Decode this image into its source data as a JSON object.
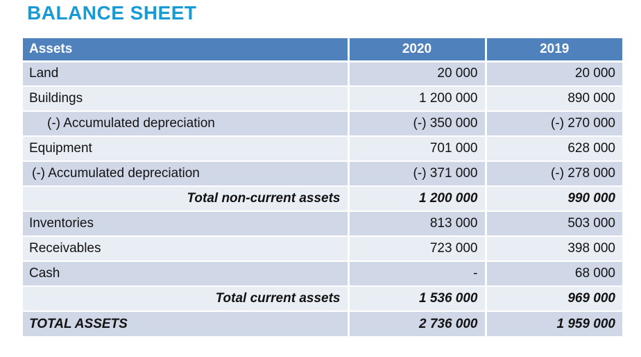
{
  "title": "BALANCE SHEET",
  "colors": {
    "title": "#189BD5",
    "header_bg": "#4F81BD",
    "header_text": "#FFFFFF",
    "row_band_dark": "#D0D8E8",
    "row_band_light": "#E9EDF4",
    "body_text": "#121212"
  },
  "table": {
    "columns": [
      "Assets",
      "2020",
      "2019"
    ],
    "rows": [
      {
        "label": "Land",
        "v2020": "20 000",
        "v2019": "20 000",
        "style": "normal",
        "indent": 0
      },
      {
        "label": "Buildings",
        "v2020": "1 200 000",
        "v2019": "890 000",
        "style": "normal",
        "indent": 0
      },
      {
        "label": "(-) Accumulated depreciation",
        "v2020": "(-) 350 000",
        "v2019": "(-) 270 000",
        "style": "normal",
        "indent": 26
      },
      {
        "label": "Equipment",
        "v2020": "701 000",
        "v2019": "628 000",
        "style": "normal",
        "indent": 0
      },
      {
        "label": "(-) Accumulated depreciation",
        "v2020": "(-) 371 000",
        "v2019": "(-) 278 000",
        "style": "normal",
        "indent": 4
      },
      {
        "label": "Total non-current assets",
        "v2020": "1 200 000",
        "v2019": "990 000",
        "style": "subtotal",
        "indent": 0
      },
      {
        "label": "Inventories",
        "v2020": "813 000",
        "v2019": "503 000",
        "style": "normal",
        "indent": 0
      },
      {
        "label": "Receivables",
        "v2020": "723 000",
        "v2019": "398 000",
        "style": "normal",
        "indent": 0
      },
      {
        "label": "Cash",
        "v2020": "-",
        "v2019": "68 000",
        "style": "normal",
        "indent": 0
      },
      {
        "label": "Total current assets",
        "v2020": "1 536 000",
        "v2019": "969 000",
        "style": "subtotal",
        "indent": 0
      },
      {
        "label": "TOTAL ASSETS",
        "v2020": "2 736 000",
        "v2019": "1 959 000",
        "style": "grand-total",
        "indent": 0
      }
    ]
  }
}
